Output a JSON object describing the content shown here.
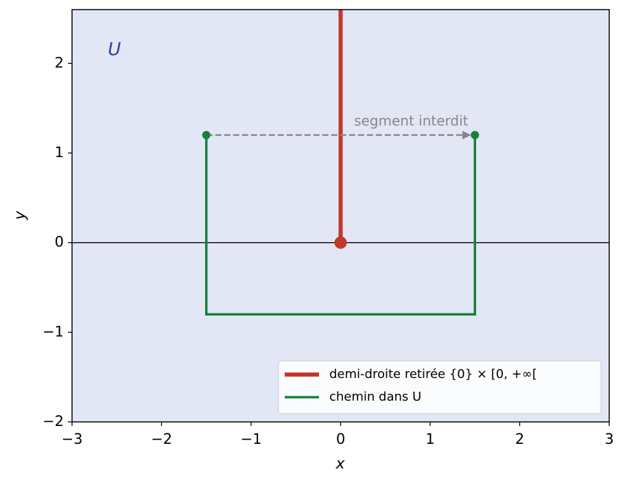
{
  "chart_data": {
    "type": "line",
    "x_label": "x",
    "y_label": "y",
    "xlim": [
      -3,
      3
    ],
    "ylim": [
      -2,
      2.6
    ],
    "xticks": [
      {
        "value": -3,
        "label": "−3"
      },
      {
        "value": -2,
        "label": "−2"
      },
      {
        "value": -1,
        "label": "−1"
      },
      0,
      1,
      2,
      3
    ],
    "yticks": [
      {
        "value": -2,
        "label": "−2"
      },
      {
        "value": -1,
        "label": "−1"
      },
      0,
      1,
      2
    ],
    "background": "#e3e6f4",
    "legend": "lower right",
    "series": [
      {
        "name": "demi-droite retirée {0} × [0, +∞[",
        "color": "#c0392b",
        "linewidth": 6,
        "x": [
          0,
          0
        ],
        "y": [
          0,
          2.6
        ]
      },
      {
        "name": "chemin dans U",
        "color": "#17803d",
        "linewidth": 3.5,
        "x": [
          -1.5,
          -1.5,
          1.5,
          1.5
        ],
        "y": [
          1.2,
          -0.8,
          -0.8,
          1.2
        ]
      }
    ],
    "markers": [
      {
        "x": 0,
        "y": 0,
        "color": "#c0392b",
        "size": 9
      },
      {
        "x": -1.5,
        "y": 1.2,
        "color": "#17803d",
        "size": 6
      },
      {
        "x": 1.5,
        "y": 1.2,
        "color": "#17803d",
        "size": 6
      }
    ],
    "hline": {
      "y": 0,
      "color": "#000000"
    },
    "arrow": {
      "from": [
        -1.5,
        1.2
      ],
      "to": [
        1.5,
        1.2
      ],
      "color": "#888888"
    },
    "annotations": [
      {
        "text": "segment interdit",
        "x": 0.15,
        "y": 1.35,
        "color": "#888888",
        "size": 20
      },
      {
        "text": "U",
        "x": -2.6,
        "y": 2.15,
        "color": "#2a3fa8",
        "size": 26,
        "italic": true
      }
    ]
  }
}
